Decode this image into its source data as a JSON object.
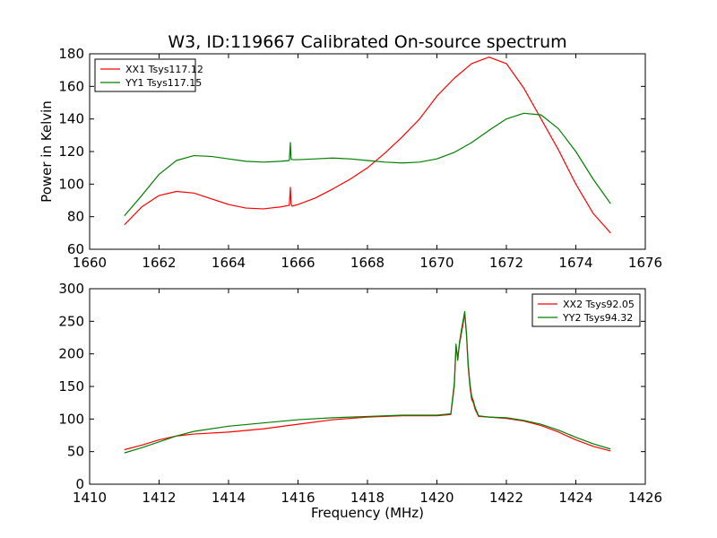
{
  "figure_title": "W3, ID:119667 Calibrated On-source spectrum",
  "chart_data": [
    {
      "type": "line",
      "title": "W3, ID:119667 Calibrated On-source spectrum",
      "xlabel": "",
      "ylabel": "Power in Kelvin",
      "xlim": [
        1660,
        1676
      ],
      "ylim": [
        60,
        180
      ],
      "xticks": [
        1660,
        1662,
        1664,
        1666,
        1668,
        1670,
        1672,
        1674,
        1676
      ],
      "yticks": [
        60,
        80,
        100,
        120,
        140,
        160,
        180
      ],
      "legend_position": "top-left",
      "grid": false,
      "series": [
        {
          "name": "XX1 Tsys117.12",
          "color": "#ff0000",
          "x": [
            1661.0,
            1661.5,
            1662.0,
            1662.5,
            1663.0,
            1663.5,
            1664.0,
            1664.5,
            1665.0,
            1665.5,
            1665.75,
            1665.78,
            1665.8,
            1665.83,
            1666.0,
            1666.5,
            1667.0,
            1667.5,
            1668.0,
            1668.5,
            1669.0,
            1669.5,
            1670.0,
            1670.5,
            1671.0,
            1671.5,
            1672.0,
            1672.5,
            1673.0,
            1673.5,
            1674.0,
            1674.5,
            1675.0
          ],
          "y": [
            75,
            86,
            93,
            95.5,
            94.5,
            91,
            87.5,
            85.3,
            84.8,
            86,
            87,
            98,
            88,
            86.5,
            87.5,
            91.5,
            97,
            103,
            110,
            119,
            129,
            140,
            154,
            165,
            174,
            178,
            174,
            159,
            140,
            121,
            100,
            82,
            70
          ]
        },
        {
          "name": "YY1 Tsys117.15",
          "color": "#008000",
          "x": [
            1661.0,
            1661.5,
            1662.0,
            1662.5,
            1663.0,
            1663.5,
            1664.0,
            1664.5,
            1665.0,
            1665.5,
            1665.75,
            1665.78,
            1665.8,
            1665.83,
            1666.0,
            1666.5,
            1667.0,
            1667.5,
            1668.0,
            1668.5,
            1669.0,
            1669.5,
            1670.0,
            1670.5,
            1671.0,
            1671.5,
            1672.0,
            1672.5,
            1673.0,
            1673.5,
            1674.0,
            1674.5,
            1675.0
          ],
          "y": [
            80.5,
            93,
            106,
            114.5,
            117.5,
            117,
            115.5,
            114,
            113.5,
            114,
            114.5,
            125.5,
            115.5,
            115,
            115,
            115.5,
            116,
            115.5,
            114.5,
            113.5,
            113,
            113.5,
            115.5,
            119.5,
            125.5,
            133,
            140,
            143.5,
            142.5,
            134,
            120,
            103,
            88
          ]
        }
      ]
    },
    {
      "type": "line",
      "title": "",
      "xlabel": "Frequency (MHz)",
      "ylabel": "",
      "xlim": [
        1410,
        1426
      ],
      "ylim": [
        0,
        300
      ],
      "xticks": [
        1410,
        1412,
        1414,
        1416,
        1418,
        1420,
        1422,
        1424,
        1426
      ],
      "yticks": [
        0,
        50,
        100,
        150,
        200,
        250,
        300
      ],
      "legend_position": "top-right",
      "grid": false,
      "series": [
        {
          "name": "XX2 Tsys92.05",
          "color": "#ff0000",
          "x": [
            1411.0,
            1411.5,
            1412.0,
            1412.5,
            1413.0,
            1414.0,
            1415.0,
            1416.0,
            1417.0,
            1418.0,
            1419.0,
            1420.0,
            1420.4,
            1420.5,
            1420.55,
            1420.6,
            1420.65,
            1420.7,
            1420.75,
            1420.8,
            1420.85,
            1420.9,
            1420.95,
            1421.0,
            1421.05,
            1421.1,
            1421.2,
            1421.5,
            1422.0,
            1422.5,
            1423.0,
            1423.5,
            1424.0,
            1424.5,
            1425.0
          ],
          "y": [
            53,
            60,
            68,
            74,
            77,
            80,
            85,
            92,
            99,
            103,
            105,
            105,
            107,
            150,
            210,
            195,
            215,
            230,
            245,
            262,
            230,
            180,
            150,
            130,
            125,
            115,
            104,
            103,
            101,
            97,
            90,
            80,
            68,
            58,
            51
          ]
        },
        {
          "name": "YY2 Tsys94.32",
          "color": "#008000",
          "x": [
            1411.0,
            1411.5,
            1412.0,
            1412.5,
            1413.0,
            1414.0,
            1415.0,
            1416.0,
            1417.0,
            1418.0,
            1419.0,
            1420.0,
            1420.4,
            1420.5,
            1420.55,
            1420.6,
            1420.65,
            1420.7,
            1420.75,
            1420.8,
            1420.85,
            1420.9,
            1420.95,
            1421.0,
            1421.05,
            1421.1,
            1421.2,
            1421.5,
            1422.0,
            1422.5,
            1423.0,
            1423.5,
            1424.0,
            1424.5,
            1425.0
          ],
          "y": [
            48,
            56,
            65,
            74,
            81,
            89,
            94,
            99,
            102,
            104,
            106,
            106,
            108,
            155,
            215,
            190,
            218,
            235,
            250,
            265,
            232,
            185,
            155,
            135,
            128,
            118,
            105,
            103,
            102,
            98,
            92,
            83,
            72,
            62,
            54
          ]
        }
      ]
    }
  ]
}
